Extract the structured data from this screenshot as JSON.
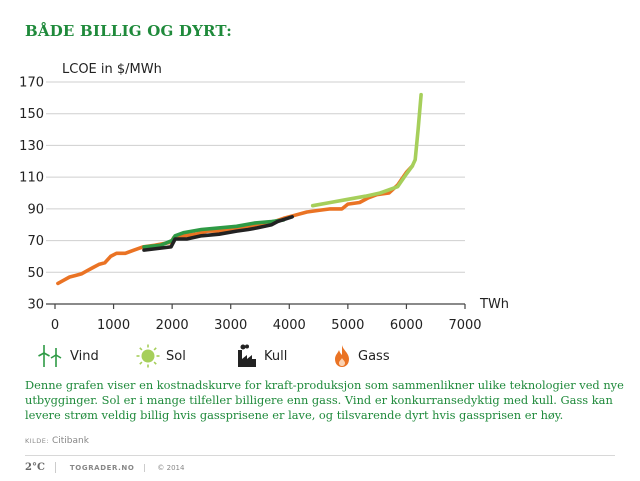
{
  "title": "BÅDE BILLIG OG DYRT:",
  "colors": {
    "vind": "#2e9a45",
    "sol": "#a6cf5b",
    "kull": "#222222",
    "gass": "#ea7324",
    "accent": "#1f8a3b"
  },
  "chart_data": {
    "type": "line",
    "title": "BÅDE BILLIG OG DYRT:",
    "ylabel": "LCOE in $/MWh",
    "xlabel": "TWh",
    "xlim": [
      0,
      7000
    ],
    "ylim": [
      30,
      170
    ],
    "x_ticks": [
      0,
      1000,
      2000,
      3000,
      4000,
      5000,
      6000,
      7000
    ],
    "y_ticks": [
      30,
      50,
      70,
      90,
      110,
      130,
      150,
      170
    ],
    "series": [
      {
        "name": "Gass",
        "color": "#ea7324",
        "points": [
          [
            50,
            43
          ],
          [
            150,
            45
          ],
          [
            250,
            47
          ],
          [
            350,
            48
          ],
          [
            450,
            49
          ],
          [
            550,
            51
          ],
          [
            650,
            53
          ],
          [
            750,
            55
          ],
          [
            850,
            56
          ],
          [
            950,
            60
          ],
          [
            1050,
            62
          ],
          [
            1200,
            62
          ],
          [
            1350,
            64
          ],
          [
            1500,
            66
          ],
          [
            1700,
            67
          ],
          [
            1850,
            68
          ],
          [
            1980,
            69
          ],
          [
            2030,
            72
          ],
          [
            2200,
            73
          ],
          [
            2400,
            74
          ],
          [
            2600,
            76
          ],
          [
            2800,
            76
          ],
          [
            3000,
            77
          ],
          [
            3200,
            78
          ],
          [
            3400,
            79
          ],
          [
            3600,
            80
          ],
          [
            3750,
            82
          ],
          [
            3900,
            84
          ],
          [
            4100,
            86
          ],
          [
            4300,
            88
          ],
          [
            4500,
            89
          ],
          [
            4700,
            90
          ],
          [
            4900,
            90
          ],
          [
            5000,
            93
          ],
          [
            5200,
            94
          ],
          [
            5350,
            97
          ],
          [
            5500,
            99
          ],
          [
            5700,
            100
          ],
          [
            5850,
            105
          ],
          [
            6000,
            113
          ],
          [
            6100,
            117
          ]
        ]
      },
      {
        "name": "Vind",
        "color": "#2e9a45",
        "points": [
          [
            1520,
            66
          ],
          [
            1800,
            67
          ],
          [
            2000,
            70
          ],
          [
            2050,
            73
          ],
          [
            2200,
            75
          ],
          [
            2500,
            77
          ],
          [
            2800,
            78
          ],
          [
            3100,
            79
          ],
          [
            3400,
            81
          ],
          [
            3700,
            82
          ],
          [
            3900,
            83
          ]
        ]
      },
      {
        "name": "Kull",
        "color": "#222222",
        "points": [
          [
            1520,
            64
          ],
          [
            1750,
            65
          ],
          [
            1980,
            66
          ],
          [
            2050,
            71
          ],
          [
            2250,
            71
          ],
          [
            2500,
            73
          ],
          [
            2800,
            74
          ],
          [
            3100,
            76
          ],
          [
            3300,
            77
          ],
          [
            3450,
            78
          ],
          [
            3700,
            80
          ],
          [
            3800,
            82
          ],
          [
            4050,
            85
          ]
        ]
      },
      {
        "name": "Sol",
        "color": "#a6cf5b",
        "points": [
          [
            4400,
            92
          ],
          [
            4700,
            94
          ],
          [
            5000,
            96
          ],
          [
            5300,
            98
          ],
          [
            5550,
            100
          ],
          [
            5850,
            104
          ],
          [
            6000,
            112
          ],
          [
            6100,
            117
          ],
          [
            6150,
            121
          ],
          [
            6200,
            140
          ],
          [
            6250,
            162
          ]
        ]
      }
    ]
  },
  "legend": [
    {
      "label": "Vind",
      "icon": "wind-turbine-icon"
    },
    {
      "label": "Sol",
      "icon": "sun-icon"
    },
    {
      "label": "Kull",
      "icon": "coal-factory-icon"
    },
    {
      "label": "Gass",
      "icon": "flame-icon"
    }
  ],
  "caption": "Denne grafen viser en kostnadskurve for kraft-produksjon som sammenlikner ulike teknologier ved nye utbygginger. Sol er i mange tilfeller billigere enn gass. Vind er konkurransedyktig med kull. Gass kan levere strøm veldig billig hvis gassprisene er lave, og tilsvarende dyrt hvis gassprisen er høy.",
  "source": {
    "label": "KILDE:",
    "name": "Citibank"
  },
  "footer": {
    "logo": "2°C",
    "site": "TOGRADER.NO",
    "copyright": "© 2014"
  }
}
